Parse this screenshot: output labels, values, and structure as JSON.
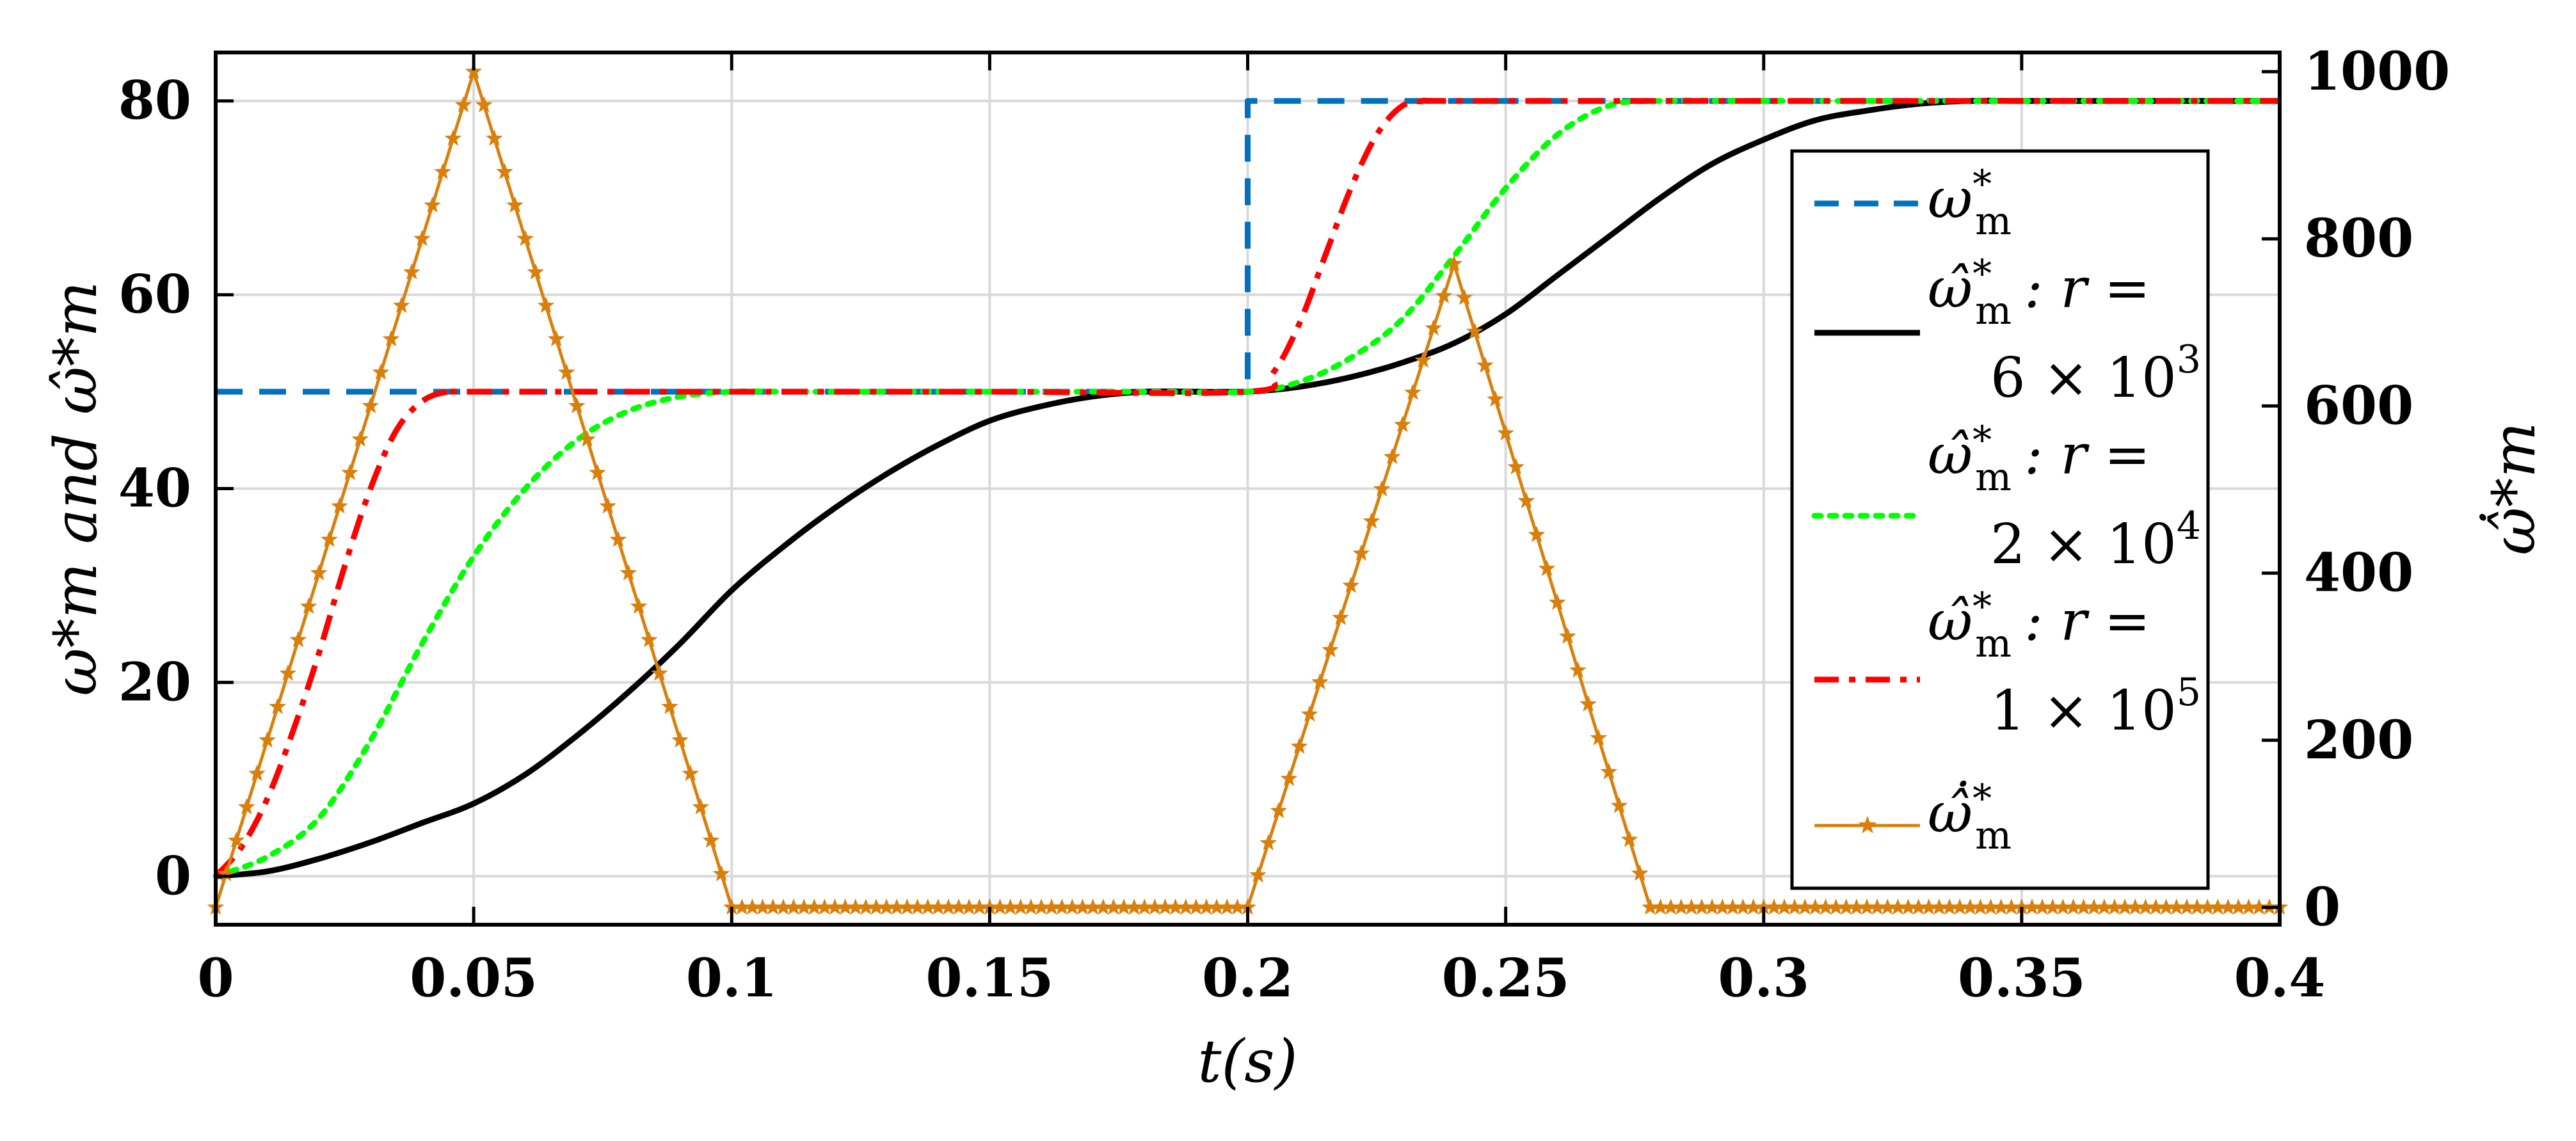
{
  "chart_data": {
    "type": "line",
    "xlabel": "t(s)",
    "ylabel_left": "ω*m and ω̂*m",
    "ylabel_right": "ω̂̇*m",
    "xlim": [
      0,
      0.4
    ],
    "ylim_left": [
      -5,
      85
    ],
    "ylim_right": [
      0,
      1000
    ],
    "xticks": [
      "0",
      "0.05",
      "0.1",
      "0.15",
      "0.2",
      "0.25",
      "0.3",
      "0.35",
      "0.4"
    ],
    "yticks_left": [
      "0",
      "20",
      "40",
      "60",
      "80"
    ],
    "yticks_right": [
      "0",
      "200",
      "400",
      "600",
      "800",
      "1000"
    ],
    "grid": true,
    "legend_position": "top-right",
    "series": [
      {
        "name": "ω*m",
        "axis": "left",
        "style": "dashed",
        "color": "#0072BD",
        "x": [
          0,
          0.2,
          0.2,
          0.4
        ],
        "y": [
          50,
          50,
          80,
          80
        ]
      },
      {
        "name": "ω̂*m : r = 6 × 10^3",
        "axis": "left",
        "style": "solid",
        "color": "#000000",
        "x": [
          0,
          0.01,
          0.02,
          0.03,
          0.04,
          0.05,
          0.06,
          0.07,
          0.08,
          0.09,
          0.1,
          0.11,
          0.12,
          0.13,
          0.14,
          0.15,
          0.16,
          0.17,
          0.18,
          0.19,
          0.2,
          0.21,
          0.22,
          0.23,
          0.24,
          0.25,
          0.26,
          0.27,
          0.28,
          0.29,
          0.3,
          0.31,
          0.32,
          0.33,
          0.34,
          0.35,
          0.36,
          0.37,
          0.38,
          0.39,
          0.4
        ],
        "y": [
          0,
          0.5,
          1.8,
          3.5,
          5.5,
          7.5,
          10.5,
          14.5,
          19,
          24,
          29.5,
          34,
          38,
          41.5,
          44.5,
          47,
          48.5,
          49.5,
          50,
          50,
          50,
          50.5,
          51.5,
          53,
          55,
          58,
          62,
          66,
          70,
          73.5,
          76,
          78,
          79,
          79.7,
          80,
          80,
          80,
          80,
          80,
          80,
          80
        ]
      },
      {
        "name": "ω̂*m : r = 2 × 10^4",
        "axis": "left",
        "style": "dotted",
        "color": "#00FF00",
        "x": [
          0,
          0.01,
          0.02,
          0.03,
          0.04,
          0.05,
          0.06,
          0.07,
          0.08,
          0.09,
          0.1,
          0.11,
          0.12,
          0.15,
          0.18,
          0.2,
          0.21,
          0.22,
          0.23,
          0.24,
          0.25,
          0.26,
          0.27,
          0.28,
          0.3,
          0.35,
          0.4
        ],
        "y": [
          0,
          2,
          6,
          14,
          24,
          33,
          40,
          45,
          48,
          49.5,
          50,
          50,
          50,
          50,
          50,
          50,
          51,
          53.5,
          57.5,
          64,
          71,
          76.5,
          79.5,
          80,
          80,
          80,
          80
        ]
      },
      {
        "name": "ω̂*m : r = 1 × 10^5",
        "axis": "left",
        "style": "dashdot",
        "color": "#FF0000",
        "x": [
          0,
          0.005,
          0.01,
          0.015,
          0.02,
          0.025,
          0.03,
          0.035,
          0.04,
          0.045,
          0.05,
          0.1,
          0.15,
          0.2,
          0.205,
          0.21,
          0.215,
          0.22,
          0.225,
          0.23,
          0.235,
          0.24,
          0.3,
          0.4
        ],
        "y": [
          0,
          3,
          8,
          15,
          23,
          32,
          40,
          46,
          49,
          50,
          50,
          50,
          50,
          50,
          52,
          57,
          64,
          71,
          76.5,
          79.5,
          80,
          80,
          80,
          80
        ]
      },
      {
        "name": "ω̂̇*m",
        "axis": "right",
        "style": "solid-star",
        "color": "#D97F0C",
        "x": [
          0,
          0.05,
          0.1,
          0.2,
          0.24,
          0.278,
          0.4
        ],
        "y": [
          0,
          1000,
          0,
          0,
          770,
          0,
          0
        ]
      }
    ]
  },
  "legend": [
    {
      "symbol": "ω",
      "sub": "m",
      "sup": "*",
      "lines": []
    },
    {
      "symbol": "ω̂",
      "sub": "m",
      "sup": "*",
      "lines": [
        ": r =",
        "6 × 10",
        "3"
      ]
    },
    {
      "symbol": "ω̂",
      "sub": "m",
      "sup": "*",
      "lines": [
        ": r =",
        "2 × 10",
        "4"
      ]
    },
    {
      "symbol": "ω̂",
      "sub": "m",
      "sup": "*",
      "lines": [
        ": r =",
        "1 × 10",
        "5"
      ]
    },
    {
      "symbol": "ω̂̇",
      "sub": "m",
      "sup": "*",
      "lines": []
    }
  ]
}
